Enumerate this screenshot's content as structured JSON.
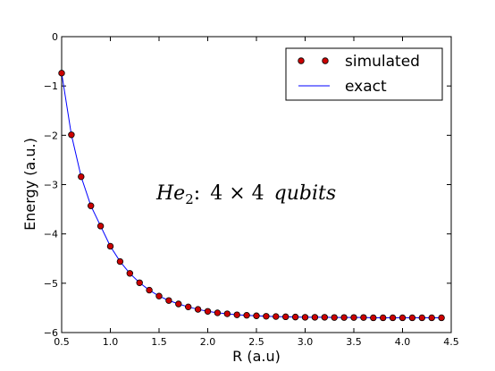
{
  "chart_data": {
    "type": "line",
    "title": "",
    "xlabel": "R (a.u)",
    "ylabel": "Energy (a.u.)",
    "xlim": [
      0.5,
      4.5
    ],
    "ylim": [
      -6,
      0
    ],
    "xticks": [
      "0.5",
      "1.0",
      "1.5",
      "2.0",
      "2.5",
      "3.0",
      "3.5",
      "4.0",
      "4.5"
    ],
    "yticks": [
      "0",
      "−1",
      "−2",
      "−3",
      "−4",
      "−5",
      "−6"
    ],
    "grid": false,
    "legend_position": "top-right",
    "x": [
      0.5,
      0.6,
      0.7,
      0.8,
      0.9,
      1.0,
      1.1,
      1.2,
      1.3,
      1.4,
      1.5,
      1.6,
      1.7,
      1.8,
      1.9,
      2.0,
      2.1,
      2.2,
      2.3,
      2.4,
      2.5,
      2.6,
      2.7,
      2.8,
      2.9,
      3.0,
      3.1,
      3.2,
      3.3,
      3.4,
      3.5,
      3.6,
      3.7,
      3.8,
      3.9,
      4.0,
      4.1,
      4.2,
      4.3,
      4.4
    ],
    "series": [
      {
        "name": "simulated",
        "style": "markers",
        "color": "#cc0000",
        "values": [
          -0.74,
          -1.99,
          -2.84,
          -3.43,
          -3.84,
          -4.25,
          -4.56,
          -4.8,
          -4.99,
          -5.14,
          -5.26,
          -5.35,
          -5.42,
          -5.48,
          -5.53,
          -5.57,
          -5.6,
          -5.62,
          -5.64,
          -5.65,
          -5.66,
          -5.67,
          -5.675,
          -5.68,
          -5.685,
          -5.69,
          -5.69,
          -5.69,
          -5.695,
          -5.695,
          -5.695,
          -5.695,
          -5.7,
          -5.7,
          -5.7,
          -5.7,
          -5.7,
          -5.7,
          -5.7,
          -5.7
        ]
      },
      {
        "name": "exact",
        "style": "line",
        "color": "#0000ff",
        "values": [
          -0.74,
          -1.99,
          -2.84,
          -3.43,
          -3.84,
          -4.25,
          -4.56,
          -4.8,
          -4.99,
          -5.14,
          -5.26,
          -5.35,
          -5.42,
          -5.48,
          -5.53,
          -5.57,
          -5.6,
          -5.62,
          -5.64,
          -5.65,
          -5.66,
          -5.67,
          -5.675,
          -5.68,
          -5.685,
          -5.69,
          -5.69,
          -5.69,
          -5.695,
          -5.695,
          -5.695,
          -5.695,
          -5.7,
          -5.7,
          -5.7,
          -5.7,
          -5.7,
          -5.7,
          -5.7,
          -5.7
        ]
      }
    ],
    "annotation": {
      "molecule": "He",
      "subscript": "2",
      "colon": ":",
      "n1": "4",
      "times": "×",
      "n2": "4",
      "word": "qubits"
    }
  }
}
